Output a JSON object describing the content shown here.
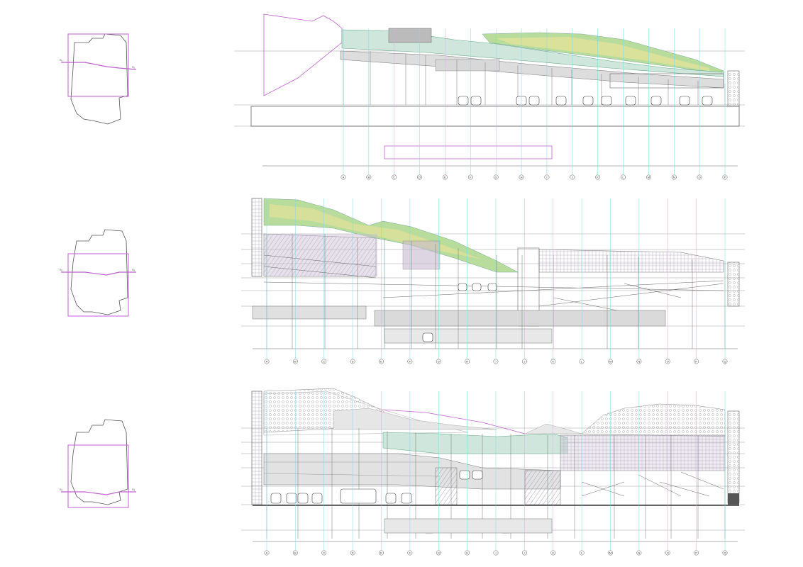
{
  "sheet": {
    "accent_magenta": "#c060d0",
    "grid_cyan": "#7fd8e8",
    "roof_green": "#a8d890",
    "roof_yellow": "#e8e090",
    "fill_purple": "#c8bcd0",
    "fill_grey": "#d8d8d8",
    "glass_green": "#cfe6dc"
  },
  "sections": [
    {
      "key_label_left": "S₁",
      "key_label_right": "S₁",
      "axis_labels": [
        "A",
        "B",
        "C",
        "D",
        "E",
        "F",
        "G",
        "H",
        "I",
        "J",
        "K",
        "L",
        "M",
        "N",
        "O",
        "P"
      ]
    },
    {
      "key_label_left": "S₂",
      "key_label_right": "S₂",
      "axis_labels": [
        "A",
        "B",
        "C",
        "D",
        "E",
        "F",
        "G",
        "H",
        "I",
        "J",
        "K",
        "L",
        "M",
        "N",
        "O",
        "P",
        "Q"
      ]
    },
    {
      "key_label_left": "S₃",
      "key_label_right": "S₃",
      "axis_labels": [
        "A",
        "B",
        "C",
        "D",
        "E",
        "F",
        "G",
        "H",
        "I",
        "J",
        "K",
        "L",
        "M",
        "N",
        "O",
        "P",
        "Q"
      ]
    }
  ]
}
